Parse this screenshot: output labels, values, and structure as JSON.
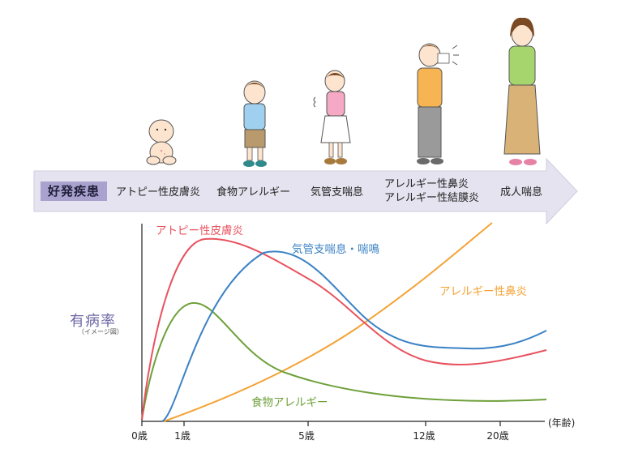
{
  "band": {
    "title": "好発疾患",
    "stages": [
      {
        "label": "アトピー性皮膚炎"
      },
      {
        "label": "食物アレルギー"
      },
      {
        "label": "気管支喘息"
      },
      {
        "label_1": "アレルギー性鼻炎",
        "label_2": "アレルギー性結膜炎"
      },
      {
        "label": "成人喘息"
      }
    ]
  },
  "chart": {
    "y_title": "有病率",
    "y_subtitle": "（イメージ図）",
    "x_unit": "(年齢)",
    "x_ticks": [
      "0歳",
      "1歳",
      "5歳",
      "12歳",
      "20歳"
    ],
    "colors": {
      "atopic": "#e8525e",
      "asthma": "#3b82c4",
      "rhinitis": "#f4a234",
      "food": "#6ea03a"
    },
    "curve_labels": {
      "atopic": "アトピー性皮膚炎",
      "asthma": "気管支喘息・喘鳴",
      "rhinitis": "アレルギー性鼻炎",
      "food": "食物アレルギー"
    }
  },
  "chart_data": {
    "type": "line",
    "x_ticks": [
      "0歳",
      "1歳",
      "5歳",
      "12歳",
      "20歳"
    ],
    "series": [
      {
        "name": "アトピー性皮膚炎"
      },
      {
        "name": "気管支喘息・喘鳴"
      },
      {
        "name": "アレルギー性鼻炎"
      },
      {
        "name": "食物アレルギー"
      }
    ],
    "ylabel": "有病率",
    "xlabel": "(年齢)"
  }
}
